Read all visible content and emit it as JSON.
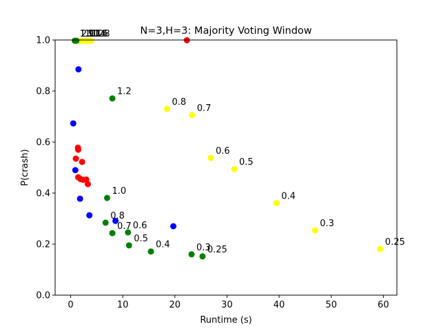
{
  "chart_data": {
    "type": "scatter",
    "title": "N=3,H=3: Majority Voting Window",
    "xlabel": "Runtime (s)",
    "ylabel": "P(crash)",
    "xlim": [
      -2.98,
      62.6
    ],
    "ylim": [
      0.0,
      1.0
    ],
    "xticks": [
      0,
      10,
      20,
      30,
      40,
      50,
      60
    ],
    "yticks": [
      0.0,
      0.2,
      0.4,
      0.6,
      0.8,
      1.0
    ],
    "xtick_labels": [
      "0",
      "10",
      "20",
      "30",
      "40",
      "50",
      "60"
    ],
    "ytick_labels": [
      "0.0",
      "0.2",
      "0.4",
      "0.6",
      "0.8",
      "1.0"
    ],
    "grid": false,
    "series": [
      {
        "color": "#0000ff",
        "points": [
          {
            "x": 0.5,
            "y": 0.673
          },
          {
            "x": 1.5,
            "y": 0.885
          },
          {
            "x": 0.9,
            "y": 0.49
          },
          {
            "x": 1.8,
            "y": 0.378
          },
          {
            "x": 3.6,
            "y": 0.313
          },
          {
            "x": 8.6,
            "y": 0.291
          },
          {
            "x": 19.7,
            "y": 0.27
          }
        ]
      },
      {
        "color": "#ff0000",
        "points": [
          {
            "x": 22.3,
            "y": 0.999
          },
          {
            "x": 1.4,
            "y": 0.578
          },
          {
            "x": 1.45,
            "y": 0.57
          },
          {
            "x": 1.0,
            "y": 0.535
          },
          {
            "x": 2.2,
            "y": 0.522
          },
          {
            "x": 1.45,
            "y": 0.462
          },
          {
            "x": 1.9,
            "y": 0.455
          },
          {
            "x": 2.4,
            "y": 0.452
          },
          {
            "x": 3.0,
            "y": 0.453
          },
          {
            "x": 3.3,
            "y": 0.435
          }
        ]
      },
      {
        "color": "#ffff00",
        "points": [
          {
            "x": 1.8,
            "y": 0.997,
            "label": "1.0"
          },
          {
            "x": 2.3,
            "y": 0.997,
            "label": "1.1"
          },
          {
            "x": 2.7,
            "y": 0.997,
            "label": "1.2"
          },
          {
            "x": 3.1,
            "y": 0.997,
            "label": "1.4"
          },
          {
            "x": 3.5,
            "y": 0.997,
            "label": "1.6"
          },
          {
            "x": 3.9,
            "y": 0.997,
            "label": "1.8"
          },
          {
            "x": 18.5,
            "y": 0.73,
            "label": "0.8"
          },
          {
            "x": 23.3,
            "y": 0.706,
            "label": "0.7"
          },
          {
            "x": 26.9,
            "y": 0.538,
            "label": "0.6"
          },
          {
            "x": 31.4,
            "y": 0.494,
            "label": "0.5"
          },
          {
            "x": 39.5,
            "y": 0.361,
            "label": "0.4"
          },
          {
            "x": 46.9,
            "y": 0.254,
            "label": "0.3"
          },
          {
            "x": 59.4,
            "y": 0.181,
            "label": "0.25"
          }
        ]
      },
      {
        "color": "#008000",
        "points": [
          {
            "x": 0.8,
            "y": 0.997,
            "label": "1.9"
          },
          {
            "x": 1.1,
            "y": 0.997,
            "label": "2.0"
          },
          {
            "x": 8.0,
            "y": 0.771,
            "label": "1.2"
          },
          {
            "x": 7.0,
            "y": 0.381,
            "label": "1.0"
          },
          {
            "x": 6.7,
            "y": 0.284,
            "label": "0.8"
          },
          {
            "x": 8.0,
            "y": 0.243,
            "label": "0.7"
          },
          {
            "x": 11.0,
            "y": 0.246,
            "label": "0.6"
          },
          {
            "x": 11.2,
            "y": 0.195,
            "label": "0.5"
          },
          {
            "x": 15.4,
            "y": 0.171,
            "label": "0.4"
          },
          {
            "x": 23.2,
            "y": 0.16,
            "label": "0.3"
          },
          {
            "x": 25.3,
            "y": 0.152,
            "label": "0.25"
          }
        ]
      }
    ]
  }
}
